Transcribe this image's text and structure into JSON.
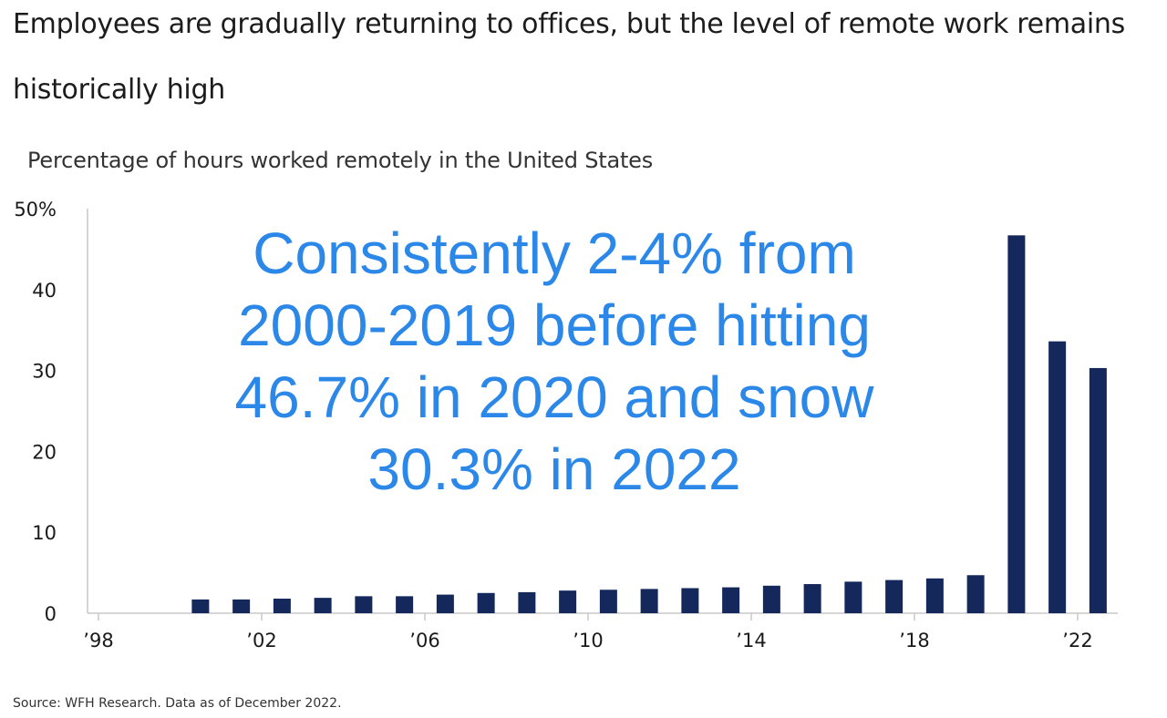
{
  "headline": {
    "line1": "Employees are gradually returning to offices, but the level of remote work remains",
    "line2": "historically high"
  },
  "source": "Source: WFH Research. Data as of December 2022.",
  "annotation": {
    "lines": [
      "Consistently 2-4% from",
      "2000-2019 before hitting",
      "46.7% in 2020 and snow",
      "30.3% in 2022"
    ],
    "color": "#2b88e8"
  },
  "colors": {
    "bar": "#15285c",
    "axis": "#c8c8c8"
  },
  "chart_data": {
    "type": "bar",
    "title": "Percentage of hours worked remotely in the United States",
    "x": [
      2000,
      2001,
      2002,
      2003,
      2004,
      2005,
      2006,
      2007,
      2008,
      2009,
      2010,
      2011,
      2012,
      2013,
      2014,
      2015,
      2016,
      2017,
      2018,
      2019,
      2020,
      2021,
      2022
    ],
    "values": [
      1.7,
      1.7,
      1.8,
      1.9,
      2.1,
      2.1,
      2.3,
      2.5,
      2.6,
      2.8,
      2.9,
      3.0,
      3.1,
      3.2,
      3.4,
      3.6,
      3.9,
      4.1,
      4.3,
      4.7,
      46.7,
      33.6,
      30.3
    ],
    "xlim": [
      1998,
      2022
    ],
    "ylim": [
      0,
      50
    ],
    "y_ticks": [
      {
        "value": 0,
        "label": "0"
      },
      {
        "value": 10,
        "label": "10"
      },
      {
        "value": 20,
        "label": "20"
      },
      {
        "value": 30,
        "label": "30"
      },
      {
        "value": 40,
        "label": "40"
      },
      {
        "value": 50,
        "label": "50%"
      }
    ],
    "x_ticks": [
      {
        "value": 1998,
        "label": "’98"
      },
      {
        "value": 2002,
        "label": "’02"
      },
      {
        "value": 2006,
        "label": "’06"
      },
      {
        "value": 2010,
        "label": "’10"
      },
      {
        "value": 2014,
        "label": "’14"
      },
      {
        "value": 2018,
        "label": "’18"
      },
      {
        "value": 2022,
        "label": "’22"
      }
    ],
    "grid": false,
    "legend": "none"
  }
}
